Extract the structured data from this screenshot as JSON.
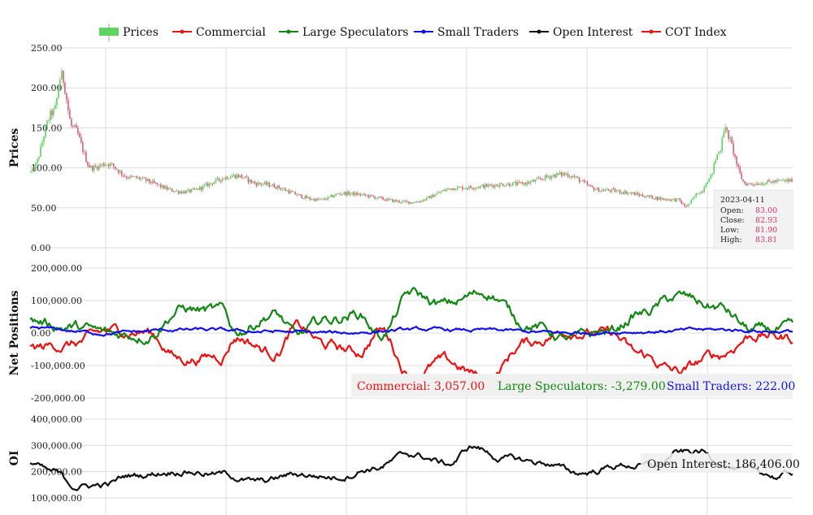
{
  "legend": [
    {
      "label": "Prices",
      "color": "#5fd35f",
      "kind": "bar"
    },
    {
      "label": "Commercial",
      "color": "#ee1111",
      "kind": "line"
    },
    {
      "label": "Large Speculators",
      "color": "#118811",
      "kind": "line"
    },
    {
      "label": "Small Traders",
      "color": "#1111ee",
      "kind": "line"
    },
    {
      "label": "Open Interest",
      "color": "#111111",
      "kind": "line"
    },
    {
      "label": "COT Index",
      "color": "#ee1111",
      "kind": "line"
    }
  ],
  "colors": {
    "up": "#5fd35f",
    "down": "#e05a7a",
    "commercial": "#ee1111",
    "large": "#118811",
    "small": "#1111ee",
    "oi": "#111111",
    "grid": "#dddddd"
  },
  "tooltip_price": {
    "date": "2023-04-11",
    "rows": [
      {
        "label": "Open:",
        "value": "83.00"
      },
      {
        "label": "Close:",
        "value": "82.93"
      },
      {
        "label": "Low:",
        "value": "81.90"
      },
      {
        "label": "High:",
        "value": "83.81"
      }
    ]
  },
  "tooltip_net": [
    {
      "text": "Commercial: 3,057.00",
      "color": "#ee1111"
    },
    {
      "text": "Large Speculators: -3,279.00",
      "color": "#118811"
    },
    {
      "text": "Small Traders: 222.00",
      "color": "#1111ee"
    }
  ],
  "tooltip_oi": {
    "text": "Open Interest: 186,406.00"
  },
  "chart_data": [
    {
      "type": "candlestick",
      "ylabel": "Prices",
      "ylim": [
        0,
        250
      ],
      "yticks": [
        "0.00",
        "50.00",
        "100.00",
        "150.00",
        "200.00",
        "250.00"
      ],
      "grid": true,
      "legend": "top-center",
      "series_name": "Prices",
      "anchors_x": [
        0,
        0.03,
        0.04,
        0.055,
        0.08,
        0.1,
        0.13,
        0.2,
        0.27,
        0.3,
        0.38,
        0.41,
        0.5,
        0.56,
        0.64,
        0.7,
        0.75,
        0.85,
        0.86,
        0.88,
        0.89,
        0.905,
        0.91,
        0.94,
        1.0
      ],
      "anchors_y": [
        95,
        170,
        215,
        150,
        100,
        105,
        88,
        70,
        90,
        80,
        60,
        68,
        57,
        75,
        80,
        92,
        72,
        60,
        52,
        70,
        85,
        120,
        148,
        80,
        84
      ]
    },
    {
      "type": "line",
      "ylabel": "Net Positions",
      "ylim": [
        -200000,
        200000
      ],
      "yticks": [
        "-200,000.00",
        "-100,000.00",
        "0.00",
        "100,000.00",
        "200,000.00"
      ],
      "grid": true,
      "series": [
        {
          "name": "Commercial",
          "color": "#ee1111",
          "anchors_x": [
            0,
            0.05,
            0.11,
            0.15,
            0.2,
            0.25,
            0.27,
            0.32,
            0.35,
            0.39,
            0.43,
            0.46,
            0.5,
            0.54,
            0.6,
            0.65,
            0.71,
            0.76,
            0.8,
            0.85,
            0.9,
            0.95,
            1.0
          ],
          "anchors_y": [
            -50000,
            -35000,
            5000,
            5000,
            -80000,
            -70000,
            -10000,
            -60000,
            15000,
            -40000,
            -60000,
            10000,
            -130000,
            -90000,
            -140000,
            -30000,
            10000,
            -5000,
            -70000,
            -120000,
            -70000,
            -5000,
            -15000
          ]
        },
        {
          "name": "Large Speculators",
          "color": "#118811",
          "anchors_x": [
            0,
            0.05,
            0.11,
            0.15,
            0.2,
            0.25,
            0.27,
            0.32,
            0.35,
            0.39,
            0.43,
            0.46,
            0.5,
            0.54,
            0.6,
            0.65,
            0.71,
            0.76,
            0.8,
            0.85,
            0.9,
            0.95,
            1.0
          ],
          "anchors_y": [
            35000,
            20000,
            -5000,
            -5000,
            75000,
            65000,
            5000,
            60000,
            -10000,
            40000,
            60000,
            -5000,
            120000,
            85000,
            125000,
            30000,
            -20000,
            5000,
            60000,
            110000,
            80000,
            5000,
            10000
          ]
        },
        {
          "name": "Small Traders",
          "color": "#1111ee",
          "anchors_x": [
            0,
            0.1,
            0.2,
            0.3,
            0.4,
            0.5,
            0.6,
            0.7,
            0.8,
            0.9,
            1.0
          ],
          "anchors_y": [
            15000,
            0,
            10000,
            5000,
            0,
            10000,
            8000,
            0,
            5000,
            10000,
            5000
          ]
        }
      ]
    },
    {
      "type": "line",
      "ylabel": "OI",
      "ylim": [
        100000,
        400000
      ],
      "yticks": [
        "100,000.00",
        "200,000.00",
        "300,000.00",
        "400,000.00"
      ],
      "grid": true,
      "series": [
        {
          "name": "Open Interest",
          "color": "#111111",
          "anchors_x": [
            0,
            0.03,
            0.06,
            0.1,
            0.13,
            0.2,
            0.25,
            0.3,
            0.35,
            0.4,
            0.45,
            0.5,
            0.55,
            0.58,
            0.62,
            0.67,
            0.72,
            0.78,
            0.82,
            0.85,
            0.88,
            0.9,
            0.94,
            0.96,
            0.98,
            1.0
          ],
          "anchors_y": [
            230000,
            195000,
            145000,
            150000,
            185000,
            205000,
            190000,
            160000,
            190000,
            180000,
            215000,
            265000,
            230000,
            295000,
            250000,
            235000,
            195000,
            225000,
            220000,
            270000,
            275000,
            240000,
            200000,
            195000,
            180000,
            195000
          ]
        }
      ]
    }
  ]
}
